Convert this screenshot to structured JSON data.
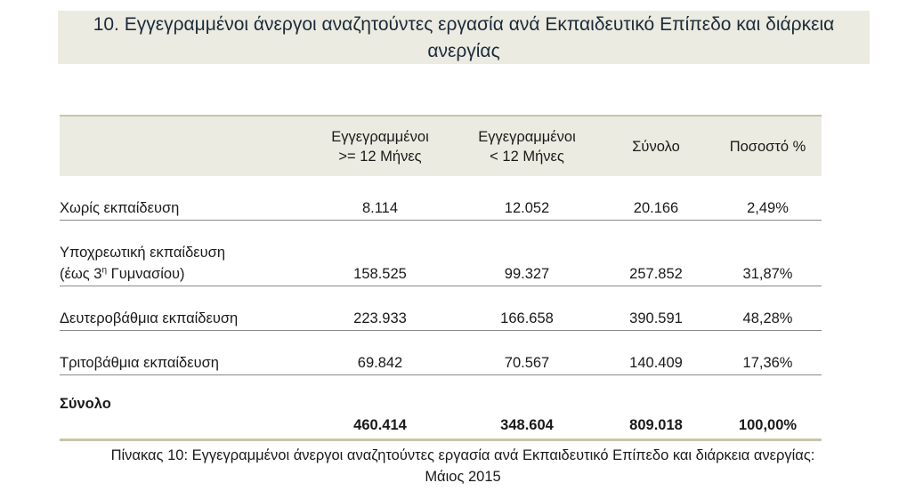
{
  "title": {
    "line1": "10. Εγγεγραμμένοι άνεργοι αναζητούντες εργασία ανά Εκπαιδευτικό Επίπεδο και διάρκεια",
    "line2": "ανεργίας"
  },
  "table": {
    "headers": {
      "col1_line1": "Εγγεγραμμένοι",
      "col1_line2": ">= 12 Μήνες",
      "col2_line1": "Εγγεγραμμένοι",
      "col2_line2": "<  12 Μήνες",
      "col3": "Σύνολο",
      "col4": "Ποσοστό %"
    },
    "rows": [
      {
        "label": "Χωρίς εκπαίδευση",
        "ge12": "8.114",
        "lt12": "12.052",
        "total": "20.166",
        "pct": "2,49%"
      },
      {
        "label_line1": "Υποχρεωτική εκπαίδευση",
        "label_pre": "(έως 3",
        "label_sup": "η",
        "label_post": " Γυμνασίου)",
        "ge12": "158.525",
        "lt12": "99.327",
        "total": "257.852",
        "pct": "31,87%"
      },
      {
        "label": "Δευτεροβάθμια εκπαίδευση",
        "ge12": "223.933",
        "lt12": "166.658",
        "total": "390.591",
        "pct": "48,28%"
      },
      {
        "label": "Τριτοβάθμια εκπαίδευση",
        "ge12": "69.842",
        "lt12": "70.567",
        "total": "140.409",
        "pct": "17,36%"
      }
    ],
    "total_row": {
      "label": "Σύνολο",
      "ge12": "460.414",
      "lt12": "348.604",
      "total": "809.018",
      "pct": "100,00%"
    }
  },
  "caption": {
    "line1": "Πίνακας 10:  Εγγεγραμμένοι άνεργοι αναζητούντες εργασία ανά Εκπαιδευτικό Επίπεδο και διάρκεια ανεργίας:",
    "line2": "Μάιος 2015"
  }
}
